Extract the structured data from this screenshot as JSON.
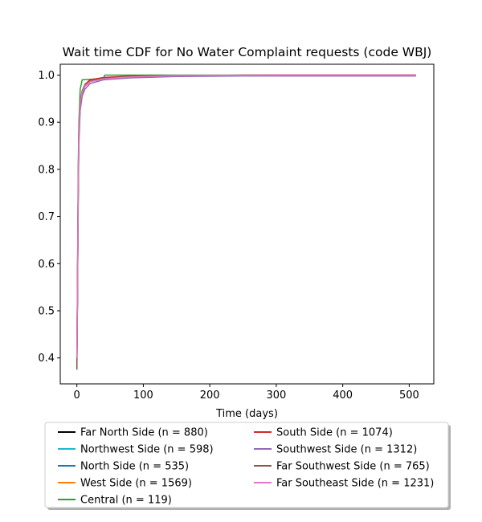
{
  "chart_data": {
    "type": "line",
    "title": "Wait time CDF for No Water Complaint  requests (code WBJ)",
    "xlabel": "Time (days)",
    "ylabel": "",
    "xlim": [
      -25,
      537
    ],
    "ylim": [
      0.345,
      1.023
    ],
    "xticks": [
      0,
      100,
      200,
      300,
      400,
      500
    ],
    "yticks": [
      0.4,
      0.5,
      0.6,
      0.7,
      0.8,
      0.9,
      1.0
    ],
    "xtick_labels": [
      "0",
      "100",
      "200",
      "300",
      "400",
      "500"
    ],
    "ytick_labels": [
      "0.4",
      "0.5",
      "0.6",
      "0.7",
      "0.8",
      "0.9",
      "1.0"
    ],
    "grid": false,
    "legend_position": "bottom-center, outside, 2 columns",
    "series": [
      {
        "name": "Far North Side (n = 880)",
        "color": "#000000",
        "x": [
          0,
          1,
          2,
          3,
          5,
          8,
          12,
          20,
          40,
          80,
          150,
          300,
          510
        ],
        "y": [
          0.4,
          0.55,
          0.75,
          0.88,
          0.94,
          0.965,
          0.978,
          0.987,
          0.993,
          0.997,
          0.999,
          1.0,
          1.0
        ]
      },
      {
        "name": "Northwest Side (n = 598)",
        "color": "#17becf",
        "x": [
          0,
          1,
          2,
          3,
          5,
          8,
          12,
          20,
          40,
          80,
          150,
          300,
          510
        ],
        "y": [
          0.41,
          0.57,
          0.77,
          0.89,
          0.945,
          0.967,
          0.979,
          0.988,
          0.994,
          0.997,
          0.999,
          1.0,
          1.0
        ]
      },
      {
        "name": "North Side (n = 535)",
        "color": "#1f77b4",
        "x": [
          0,
          1,
          2,
          3,
          5,
          8,
          12,
          20,
          40,
          80,
          150,
          300,
          510
        ],
        "y": [
          0.39,
          0.54,
          0.74,
          0.87,
          0.935,
          0.962,
          0.976,
          0.986,
          0.993,
          0.997,
          0.999,
          1.0,
          1.0
        ]
      },
      {
        "name": "West Side (n = 1569)",
        "color": "#ff7f0e",
        "x": [
          0,
          1,
          2,
          3,
          5,
          8,
          12,
          20,
          40,
          80,
          150,
          300,
          510
        ],
        "y": [
          0.4,
          0.56,
          0.76,
          0.88,
          0.94,
          0.965,
          0.978,
          0.988,
          0.994,
          0.997,
          0.999,
          1.0,
          1.0
        ]
      },
      {
        "name": "Central (n = 119)",
        "color": "#2ca02c",
        "x": [
          0,
          1,
          2,
          3,
          5,
          8,
          30,
          40,
          42,
          510
        ],
        "y": [
          0.38,
          0.6,
          0.8,
          0.9,
          0.97,
          0.99,
          0.992,
          0.992,
          1.0,
          1.0
        ]
      },
      {
        "name": "South Side (n = 1074)",
        "color": "#d62728",
        "x": [
          0,
          1,
          2,
          3,
          5,
          8,
          12,
          20,
          40,
          80,
          150,
          300,
          510
        ],
        "y": [
          0.39,
          0.55,
          0.75,
          0.875,
          0.94,
          0.966,
          0.98,
          0.99,
          0.995,
          0.998,
          0.999,
          1.0,
          1.0
        ]
      },
      {
        "name": "Southwest Side (n = 1312)",
        "color": "#9467bd",
        "x": [
          0,
          1,
          2,
          3,
          5,
          8,
          12,
          20,
          40,
          80,
          150,
          250,
          510
        ],
        "y": [
          0.38,
          0.53,
          0.72,
          0.85,
          0.925,
          0.955,
          0.97,
          0.982,
          0.99,
          0.994,
          0.997,
          0.998,
          0.998
        ]
      },
      {
        "name": "Far Southwest Side (n = 765)",
        "color": "#8c564b",
        "x": [
          0,
          1,
          2,
          3,
          5,
          8,
          12,
          20,
          40,
          80,
          150,
          300,
          510
        ],
        "y": [
          0.375,
          0.54,
          0.74,
          0.87,
          0.935,
          0.963,
          0.977,
          0.987,
          0.993,
          0.997,
          0.999,
          1.0,
          1.0
        ]
      },
      {
        "name": "Far Southeast Side (n = 1231)",
        "color": "#e377c2",
        "x": [
          0,
          1,
          2,
          3,
          5,
          8,
          12,
          20,
          40,
          80,
          150,
          300,
          510
        ],
        "y": [
          0.4,
          0.56,
          0.76,
          0.88,
          0.94,
          0.964,
          0.977,
          0.986,
          0.992,
          0.996,
          0.999,
          1.0,
          1.0
        ]
      }
    ]
  }
}
